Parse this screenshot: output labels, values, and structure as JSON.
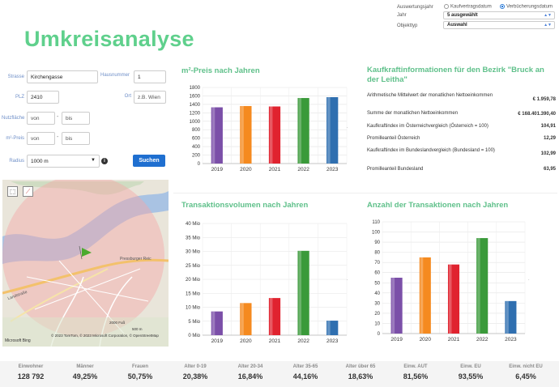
{
  "filters": {
    "auswertungsjahr_label": "Auswertungsjahr",
    "option_kaufvertrag": "Kaufvertragsdatum",
    "option_verbuecherung": "Verbücherungsdatum",
    "jahr_label": "Jahr",
    "jahr_value": "5 ausgewählt",
    "objekttyp_label": "Objekttyp",
    "objekttyp_value": "Auswahl"
  },
  "title": "Umkreisanalyse",
  "form": {
    "strasse_label": "Strasse",
    "strasse_value": "Kirchengasse",
    "hausnummer_label": "Hausnummer",
    "hausnummer_value": "1",
    "plz_label": "PLZ",
    "plz_value": "2410",
    "ort_label": "Ort",
    "ort_placeholder": "z.B. Wien",
    "nutzflaeche_label": "Nutzfläche",
    "von_placeholder": "von",
    "bis_placeholder": "bis",
    "m2preis_label": "m²-Preis",
    "radius_label": "Radius",
    "radius_value": "1000 m",
    "search_label": "Suchen",
    "info_glyph": "i"
  },
  "map": {
    "attribution": "© 2023 TomTom, © 2023 Microsoft Corporation, © OpenStreetMap",
    "logo": "Microsoft Bing",
    "scale_ft": "2000 Fuß",
    "scale_m": "500 m",
    "road_1": "Pressburger Reic",
    "road_2": "Landstraße"
  },
  "sections": {
    "m2_title": "m²-Preis nach Jahren",
    "kk_title": "Kaufkraftinformationen für den Bezirk \"Bruck an der Leitha\"",
    "tv_title": "Transaktionsvolumen nach Jahren",
    "anz_title": "Anzahl der Transaktionen nach Jahren"
  },
  "kaufkraft": [
    {
      "label": "Arithmetische Mittelwert der monatlichen Nettoeinkommen",
      "value": "€ 1.959,78"
    },
    {
      "label": "Summe der monatlichen Nettoeinkommen",
      "value": "€ 168.401.390,40"
    },
    {
      "label": "Kaufkraftindex im Österreichvergleich (Österreich = 100)",
      "value": "104,91"
    },
    {
      "label": "Promilleanteil Österreich",
      "value": "12,29"
    },
    {
      "label": "Kaufkraftindex im Bundeslandvergleich (Bundesland = 100)",
      "value": "102,99"
    },
    {
      "label": "Promilleanteil Bundesland",
      "value": "63,95"
    }
  ],
  "chart_data": [
    {
      "type": "bar",
      "categories": [
        "2019",
        "2020",
        "2021",
        "2022",
        "2023"
      ],
      "values": [
        1330,
        1360,
        1350,
        1550,
        1570
      ],
      "ylim": [
        0,
        1800
      ],
      "yticks": [
        "0",
        "200",
        "400",
        "600",
        "800",
        "1000",
        "1200",
        "1400",
        "1600",
        "1800"
      ],
      "grid": true,
      "colors": [
        "#7b4fa8",
        "#f58a1f",
        "#e0232f",
        "#3a9a3a",
        "#2f6fb0"
      ]
    },
    {
      "type": "bar",
      "categories": [
        "2019",
        "2020",
        "2021",
        "2022",
        "2023"
      ],
      "values": [
        8.5,
        11.5,
        13.3,
        30.2,
        5.2
      ],
      "ylim": [
        0,
        40
      ],
      "yticks": [
        "0 Mio",
        "5 Mio",
        "10 Mio",
        "15 Mio",
        "20 Mio",
        "25 Mio",
        "30 Mio",
        "35 Mio",
        "40 Mio"
      ],
      "grid": true,
      "colors": [
        "#7b4fa8",
        "#f58a1f",
        "#e0232f",
        "#3a9a3a",
        "#2f6fb0"
      ]
    },
    {
      "type": "bar",
      "categories": [
        "2019",
        "2020",
        "2021",
        "2022",
        "2023"
      ],
      "values": [
        55,
        75,
        68,
        94,
        32
      ],
      "ylim": [
        0,
        110
      ],
      "yticks": [
        "0",
        "10",
        "20",
        "30",
        "40",
        "50",
        "60",
        "70",
        "80",
        "90",
        "100",
        "110"
      ],
      "grid": true,
      "colors": [
        "#7b4fa8",
        "#f58a1f",
        "#e0232f",
        "#3a9a3a",
        "#2f6fb0"
      ]
    }
  ],
  "stats": [
    {
      "label": "Einwohner",
      "value": "128 792"
    },
    {
      "label": "Männer",
      "value": "49,25%"
    },
    {
      "label": "Frauen",
      "value": "50,75%"
    },
    {
      "label": "Alter 0-19",
      "value": "20,38%"
    },
    {
      "label": "Alter 20-34",
      "value": "16,84%"
    },
    {
      "label": "Alter 35-65",
      "value": "44,16%"
    },
    {
      "label": "Alter über 65",
      "value": "18,63%"
    },
    {
      "label": "Einw. AUT",
      "value": "81,56%"
    },
    {
      "label": "Einw. EU",
      "value": "93,55%"
    },
    {
      "label": "Einw. nicht EU",
      "value": "6,45%"
    }
  ]
}
